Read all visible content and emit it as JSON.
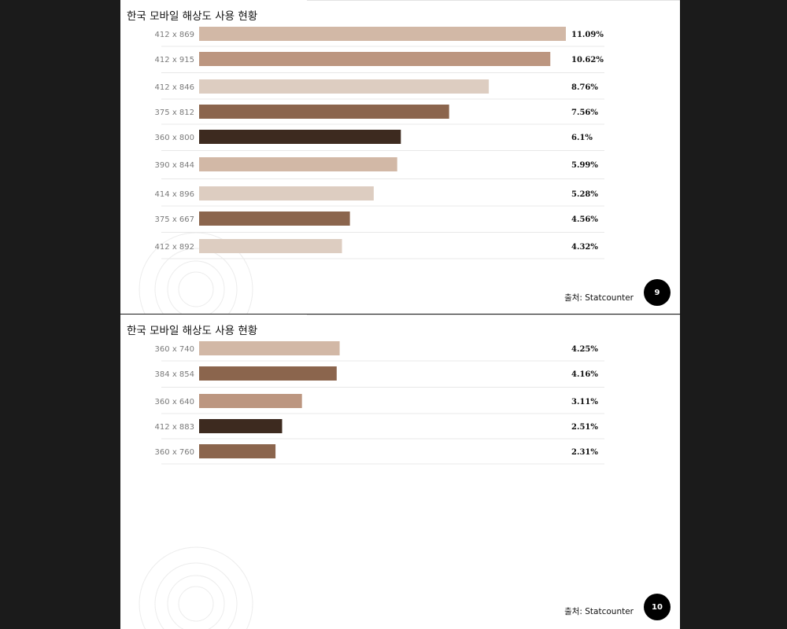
{
  "colors": {
    "light": "#ddcdc1",
    "tan": "#d2b8a6",
    "medium": "#bc9680",
    "brown": "#8b654d",
    "dark": "#3d2a1f",
    "rule": "#e8e8e8"
  },
  "pages": [
    {
      "title": "한국 모바일 해상도 사용 현황",
      "source": "출처: Statcounter",
      "page_number": "9"
    },
    {
      "title": "한국 모바일 해상도 사용 현황",
      "source": "출처: Statcounter",
      "page_number": "10"
    }
  ],
  "chart_data": [
    {
      "type": "bar",
      "orientation": "horizontal",
      "title": "한국 모바일 해상도 사용 현황",
      "xlim": [
        0,
        11.09
      ],
      "categories": [
        "412 x 869",
        "412 x 915",
        "412 x 846",
        "375 x 812",
        "360 x 800",
        "390 x 844",
        "414 x 896",
        "375 x 667",
        "412 x 892"
      ],
      "values": [
        11.09,
        10.62,
        8.76,
        7.56,
        6.1,
        5.99,
        5.28,
        4.56,
        4.32
      ],
      "labels": [
        "11.09%",
        "10.62%",
        "8.76%",
        "7.56%",
        "6.1%",
        "5.99%",
        "5.28%",
        "4.56%",
        "4.32%"
      ],
      "bar_colors": [
        "tan",
        "medium",
        "light",
        "brown",
        "dark",
        "tan",
        "light",
        "brown",
        "light"
      ]
    },
    {
      "type": "bar",
      "orientation": "horizontal",
      "title": "한국 모바일 해상도 사용 현황",
      "xlim": [
        0,
        11.09
      ],
      "categories": [
        "360 x 740",
        "384 x 854",
        "360 x 640",
        "412 x 883",
        "360 x 760"
      ],
      "values": [
        4.25,
        4.16,
        3.11,
        2.51,
        2.31
      ],
      "labels": [
        "4.25%",
        "4.16%",
        "3.11%",
        "2.51%",
        "2.31%"
      ],
      "bar_colors": [
        "tan",
        "brown",
        "medium",
        "dark",
        "brown"
      ]
    }
  ]
}
